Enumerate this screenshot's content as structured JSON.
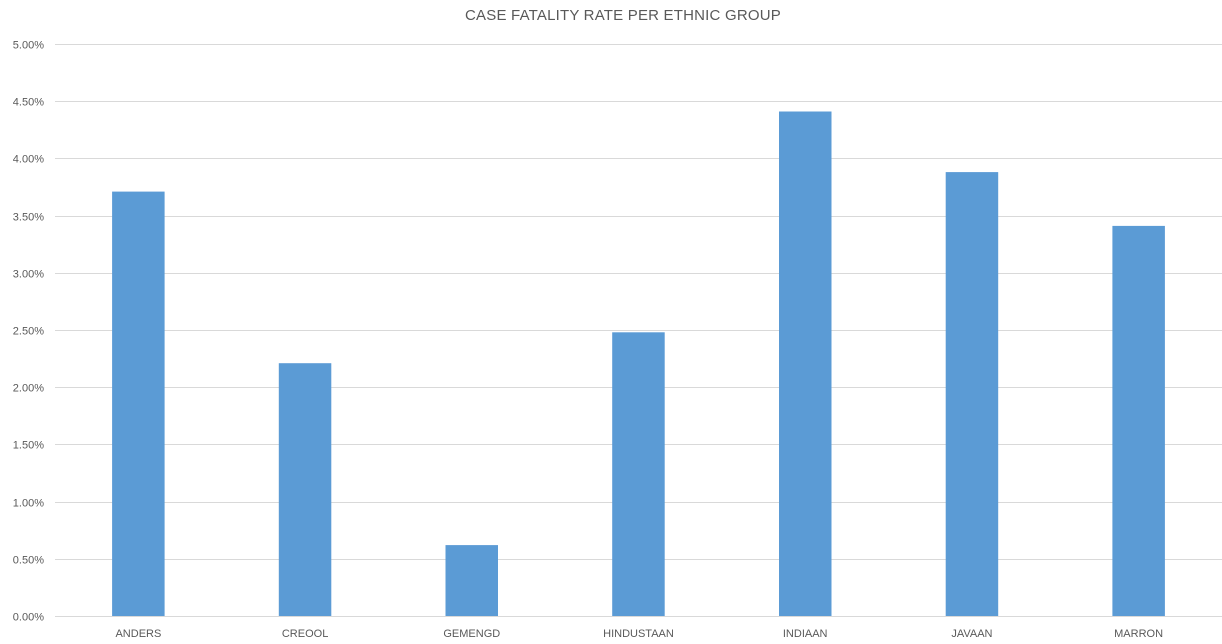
{
  "chart_data": {
    "type": "bar",
    "title": "CASE FATALITY RATE PER ETHNIC GROUP",
    "xlabel": "",
    "ylabel": "",
    "categories": [
      "ANDERS",
      "CREOOL",
      "GEMENGD",
      "HINDUSTAAN",
      "INDIAAN",
      "JAVAAN",
      "MARRON"
    ],
    "series": [
      {
        "values": [
          0.0371,
          0.0221,
          0.0062,
          0.0248,
          0.0441,
          0.0388,
          0.0341
        ],
        "color": "#5b9bd5"
      }
    ],
    "ylim": [
      0,
      0.05
    ],
    "yticks": [
      0,
      0.005,
      0.01,
      0.015,
      0.02,
      0.025,
      0.03,
      0.035,
      0.04,
      0.045,
      0.05
    ],
    "ytick_labels": [
      "0.00%",
      "0.50%",
      "1.00%",
      "1.50%",
      "2.00%",
      "2.50%",
      "3.00%",
      "3.50%",
      "4.00%",
      "4.50%",
      "5.00%"
    ],
    "grid": true,
    "legend": "none"
  }
}
